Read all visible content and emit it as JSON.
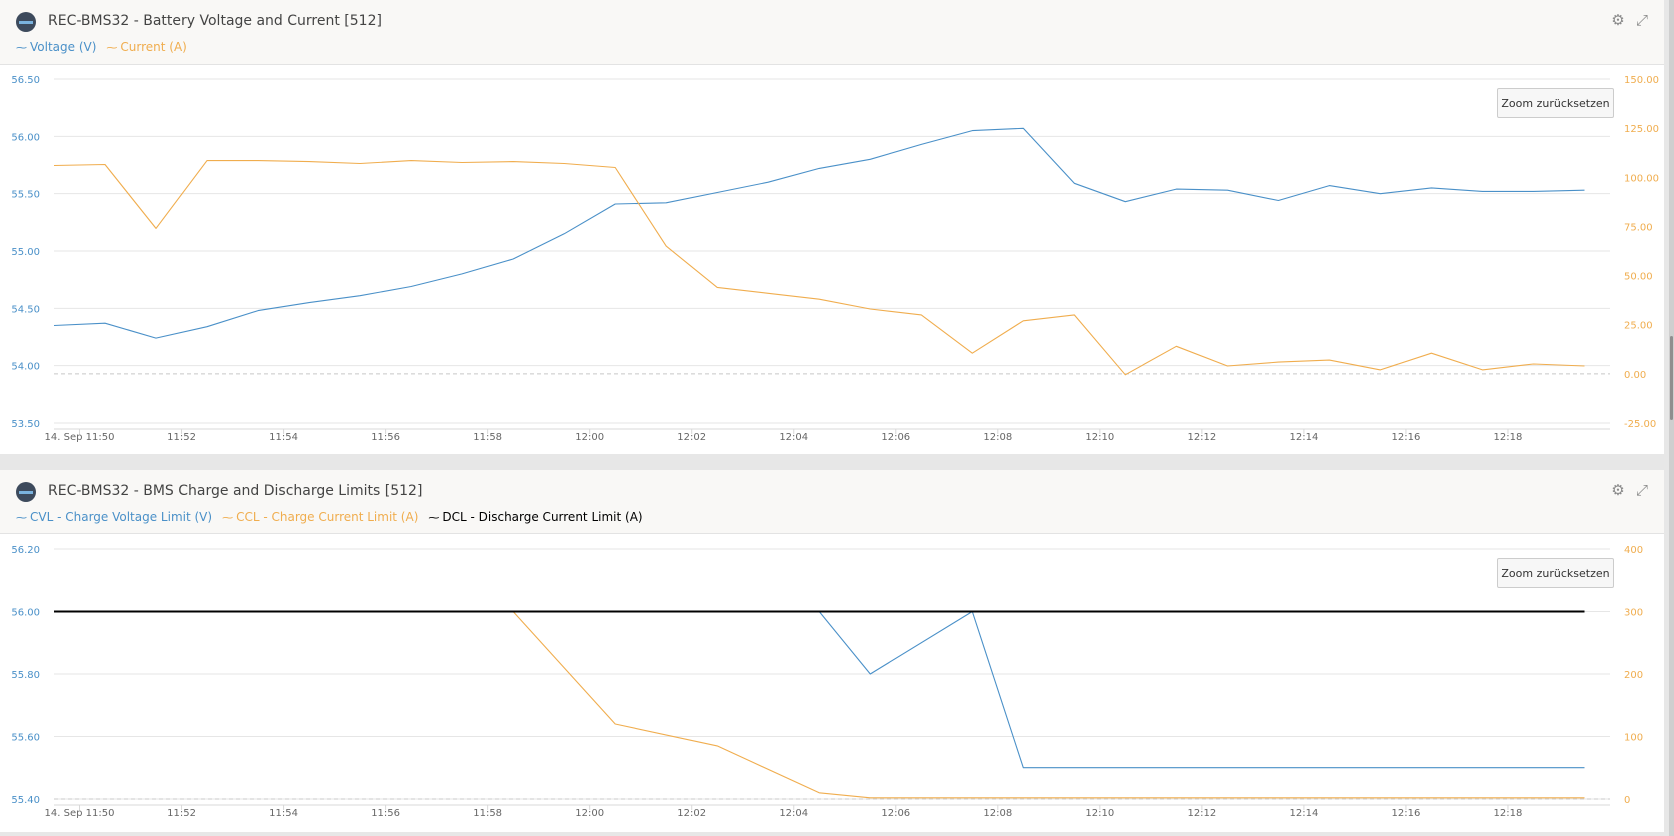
{
  "panels": [
    {
      "title": "REC-BMS32 - Battery Voltage and Current [512]",
      "zoom_label": "Zoom zurücksetzen",
      "legend": [
        {
          "label": "Voltage (V)",
          "color": "#4a90c8"
        },
        {
          "label": "Current (A)",
          "color": "#f0ad4e"
        }
      ]
    },
    {
      "title": "REC-BMS32 - BMS Charge and Discharge Limits [512]",
      "zoom_label": "Zoom zurücksetzen",
      "legend": [
        {
          "label": "CVL - Charge Voltage Limit (V)",
          "color": "#4a90c8"
        },
        {
          "label": "CCL - Charge Current Limit (A)",
          "color": "#f0ad4e"
        },
        {
          "label": "DCL - Discharge Current Limit (A)",
          "color": "#000000"
        }
      ]
    }
  ],
  "chart_data": [
    {
      "type": "line",
      "title": "REC-BMS32 - Battery Voltage and Current [512]",
      "x_tick_labels": [
        "14. Sep 11:50",
        "11:52",
        "11:54",
        "11:56",
        "11:58",
        "12:00",
        "12:02",
        "12:04",
        "12:06",
        "12:08",
        "12:10",
        "12:12",
        "12:14",
        "12:16",
        "12:18"
      ],
      "x_start_minute": 709.5,
      "x_end_minute": 740.0,
      "y_left": {
        "min": 53.5,
        "max": 56.5,
        "ticks": [
          "53.50",
          "54.00",
          "54.50",
          "55.00",
          "55.50",
          "56.00",
          "56.50"
        ],
        "color": "#4a90c8"
      },
      "y_right": {
        "min": -25,
        "max": 150,
        "ticks": [
          "-25.00",
          "0.00",
          "25.00",
          "50.00",
          "75.00",
          "100.00",
          "125.00",
          "150.00"
        ],
        "color": "#f0ad4e"
      },
      "zero_line_right": 0,
      "series": [
        {
          "name": "Voltage (V)",
          "axis": "left",
          "color": "#4a90c8",
          "x": [
            709.5,
            710.5,
            711.5,
            712.5,
            713.5,
            714.5,
            715.5,
            716.5,
            717.5,
            718.5,
            719.5,
            720.5,
            721.5,
            722.5,
            723.5,
            724.5,
            725.5,
            726.5,
            727.5,
            728.5,
            729.5,
            730.5,
            731.5,
            732.5,
            733.5,
            734.5,
            735.5,
            736.5,
            737.5,
            738.5,
            739.5
          ],
          "values": [
            54.35,
            54.37,
            54.24,
            54.34,
            54.48,
            54.55,
            54.61,
            54.69,
            54.8,
            54.93,
            55.15,
            55.41,
            55.42,
            55.51,
            55.6,
            55.72,
            55.8,
            55.93,
            56.05,
            56.07,
            55.59,
            55.43,
            55.54,
            55.53,
            55.44,
            55.57,
            55.5,
            55.55,
            55.52,
            55.52,
            55.53
          ]
        },
        {
          "name": "Current (A)",
          "axis": "right",
          "color": "#f0ad4e",
          "x": [
            709.5,
            710.5,
            711.5,
            712.5,
            713.5,
            714.5,
            715.5,
            716.5,
            717.5,
            718.5,
            719.5,
            720.5,
            721.5,
            722.5,
            723.5,
            724.5,
            725.5,
            726.5,
            727.5,
            728.5,
            729.5,
            730.5,
            731.5,
            732.5,
            733.5,
            734.5,
            735.5,
            736.5,
            737.5,
            738.5,
            739.5
          ],
          "values": [
            106.0,
            106.5,
            74.0,
            108.5,
            108.5,
            108.0,
            107.0,
            108.5,
            107.5,
            108.0,
            107.0,
            105.0,
            65.0,
            44.0,
            41.0,
            38.0,
            33.0,
            30.0,
            10.5,
            27.0,
            30.0,
            -0.5,
            14.0,
            4.0,
            6.0,
            7.0,
            2.0,
            10.5,
            2.0,
            5.0,
            4.0
          ]
        }
      ]
    },
    {
      "type": "line",
      "title": "REC-BMS32 - BMS Charge and Discharge Limits [512]",
      "x_tick_labels": [
        "14. Sep 11:50",
        "11:52",
        "11:54",
        "11:56",
        "11:58",
        "12:00",
        "12:02",
        "12:04",
        "12:06",
        "12:08",
        "12:10",
        "12:12",
        "12:14",
        "12:16",
        "12:18"
      ],
      "x_start_minute": 709.5,
      "x_end_minute": 740.0,
      "y_left": {
        "min": 55.4,
        "max": 56.2,
        "ticks": [
          "55.40",
          "55.60",
          "55.80",
          "56.00",
          "56.20"
        ],
        "color": "#4a90c8"
      },
      "y_right": {
        "min": 0,
        "max": 400,
        "ticks": [
          "0",
          "100",
          "200",
          "300",
          "400"
        ],
        "color": "#f0ad4e"
      },
      "zero_line_right": 0,
      "series": [
        {
          "name": "CVL - Charge Voltage Limit (V)",
          "axis": "left",
          "color": "#4a90c8",
          "x": [
            709.5,
            724.5,
            725.5,
            727.5,
            728.5,
            739.5
          ],
          "values": [
            56.0,
            56.0,
            55.8,
            56.0,
            55.5,
            55.5
          ]
        },
        {
          "name": "CCL - Charge Current Limit (A)",
          "axis": "right",
          "color": "#f0ad4e",
          "x": [
            709.5,
            718.5,
            720.5,
            722.5,
            724.5,
            725.5,
            739.5
          ],
          "values": [
            300,
            300,
            120,
            85,
            10,
            2,
            2
          ]
        },
        {
          "name": "DCL - Discharge Current Limit (A)",
          "axis": "right",
          "color": "#000000",
          "x": [
            709.5,
            739.5
          ],
          "values": [
            300,
            300
          ]
        }
      ]
    }
  ]
}
